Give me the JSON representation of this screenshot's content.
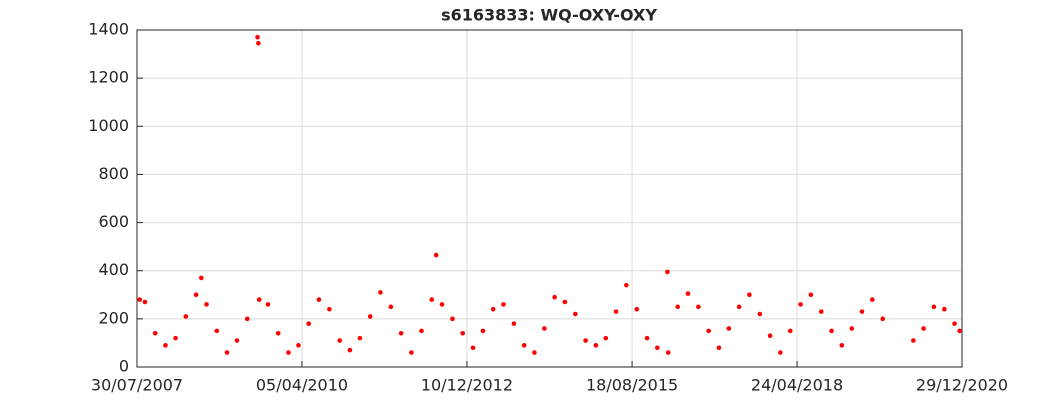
{
  "chart_data": {
    "type": "scatter",
    "title": "s6163833: WQ-OXY-OXY",
    "x": [
      "2007-08-15",
      "2007-09-15",
      "2007-11-15",
      "2008-01-15",
      "2008-03-15",
      "2008-05-15",
      "2008-07-15",
      "2008-08-15",
      "2008-09-15",
      "2008-11-15",
      "2009-01-15",
      "2009-03-15",
      "2009-05-15",
      "2009-07-15",
      "2009-07-20",
      "2009-07-25",
      "2009-09-15",
      "2009-11-15",
      "2010-01-15",
      "2010-03-15",
      "2010-05-15",
      "2010-07-15",
      "2010-09-15",
      "2010-11-15",
      "2011-01-15",
      "2011-03-15",
      "2011-05-15",
      "2011-07-15",
      "2011-09-15",
      "2011-11-15",
      "2012-01-15",
      "2012-03-15",
      "2012-05-15",
      "2012-06-10",
      "2012-07-15",
      "2012-09-15",
      "2012-11-15",
      "2013-01-15",
      "2013-03-15",
      "2013-05-15",
      "2013-07-15",
      "2013-09-15",
      "2013-11-15",
      "2014-01-15",
      "2014-03-15",
      "2014-05-15",
      "2014-07-15",
      "2014-09-15",
      "2014-11-15",
      "2015-01-15",
      "2015-03-15",
      "2015-05-15",
      "2015-07-15",
      "2015-09-15",
      "2015-11-15",
      "2016-01-15",
      "2016-03-15",
      "2016-03-20",
      "2016-05-15",
      "2016-07-15",
      "2016-09-15",
      "2016-11-15",
      "2017-01-15",
      "2017-03-15",
      "2017-05-15",
      "2017-07-15",
      "2017-09-15",
      "2017-11-15",
      "2018-01-15",
      "2018-03-15",
      "2018-05-15",
      "2018-07-15",
      "2018-09-15",
      "2018-11-15",
      "2019-01-15",
      "2019-03-15",
      "2019-05-15",
      "2019-07-15",
      "2019-09-15",
      "2020-03-15",
      "2020-05-15",
      "2020-07-15",
      "2020-09-15",
      "2020-11-15",
      "2020-12-15"
    ],
    "series": [
      {
        "color": "#ff0000",
        "values": [
          280,
          270,
          140,
          90,
          120,
          210,
          300,
          370,
          260,
          150,
          60,
          110,
          200,
          1370,
          1345,
          280,
          260,
          140,
          60,
          90,
          180,
          280,
          240,
          110,
          70,
          120,
          210,
          310,
          250,
          140,
          60,
          150,
          280,
          465,
          260,
          200,
          140,
          80,
          150,
          240,
          260,
          180,
          90,
          60,
          160,
          290,
          270,
          220,
          110,
          90,
          120,
          230,
          340,
          240,
          120,
          80,
          395,
          60,
          250,
          305,
          250,
          150,
          80,
          160,
          250,
          300,
          220,
          130,
          60,
          150,
          260,
          300,
          230,
          150,
          90,
          160,
          230,
          280,
          200,
          110,
          160,
          250,
          240,
          180,
          150
        ]
      }
    ],
    "xlim": [
      "2007-07-30",
      "2020-12-29"
    ],
    "xticks": [
      {
        "value": "2007-07-30",
        "label": "30/07/2007"
      },
      {
        "value": "2010-04-05",
        "label": "05/04/2010"
      },
      {
        "value": "2012-12-10",
        "label": "10/12/2012"
      },
      {
        "value": "2015-08-18",
        "label": "18/08/2015"
      },
      {
        "value": "2018-04-24",
        "label": "24/04/2018"
      },
      {
        "value": "2020-12-29",
        "label": "29/12/2020"
      }
    ],
    "ylim": [
      0,
      1400
    ],
    "yticks": [
      0,
      200,
      400,
      600,
      800,
      1000,
      1200,
      1400
    ],
    "grid": true
  }
}
